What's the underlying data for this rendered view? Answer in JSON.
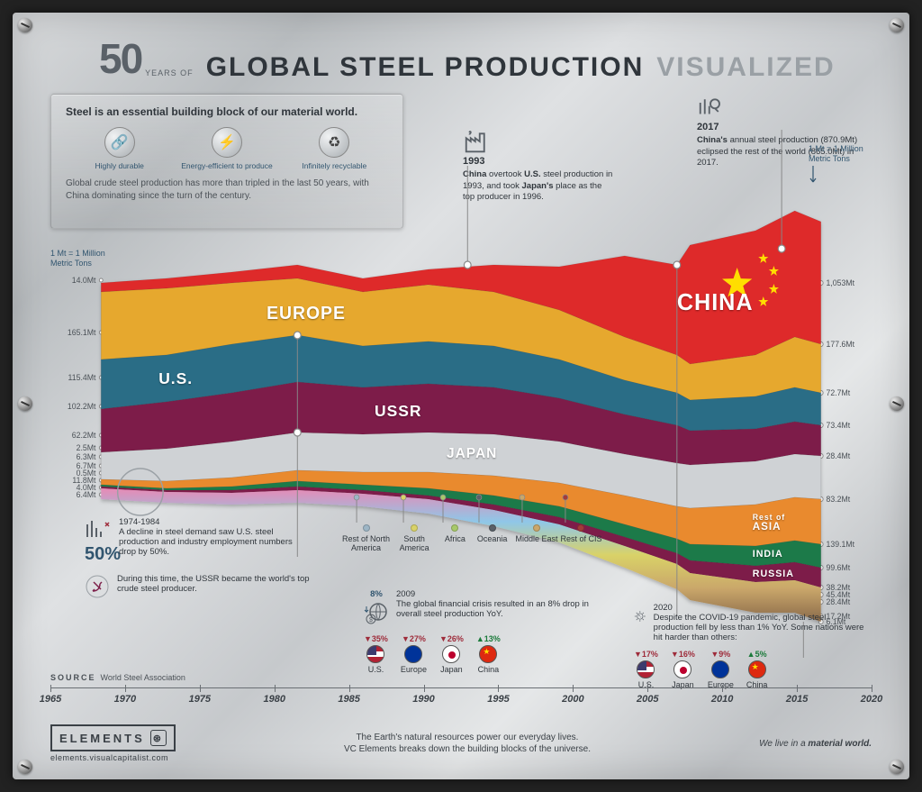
{
  "title": {
    "number": "50",
    "years_of": "YEARS OF",
    "main": "GLOBAL STEEL PRODUCTION",
    "suffix": "VISUALIZED"
  },
  "infobox": {
    "heading": "Steel is an essential building block of our material world.",
    "icons": [
      {
        "glyph": "🔗",
        "label": "Highly durable"
      },
      {
        "glyph": "⚡",
        "label": "Energy-efficient to produce"
      },
      {
        "glyph": "♻",
        "label": "Infinitely recyclable"
      }
    ],
    "subtext": "Global crude steel production has more than tripled in the last 50 years, with China dominating since the turn of the century."
  },
  "callout_1993": {
    "year": "1993",
    "text_parts": [
      "China",
      " overtook ",
      "U.S.",
      " steel production in 1993, and took ",
      "Japan's",
      " place as the top producer in 1996."
    ]
  },
  "callout_2017": {
    "year": "2017",
    "text_parts": [
      "China's",
      " annual steel production (870.9Mt) eclipsed the rest of the world (865.0Mt) in 2017."
    ]
  },
  "unit_left": "1 Mt = 1 Million Metric Tons",
  "unit_right": "1 Mt = 1 Million Metric Tons",
  "chart": {
    "type": "stacked-area",
    "x_domain": [
      1965,
      2020
    ],
    "years": [
      1965,
      1970,
      1975,
      1980,
      1985,
      1990,
      1995,
      2000,
      2005,
      2010,
      2015,
      2020
    ],
    "left_axis_values": [
      "14.0Mt",
      "165.1Mt",
      "115.4Mt",
      "102.2Mt",
      "62.2Mt",
      "2.5Mt",
      "6.3Mt",
      "6.7Mt",
      "0.5Mt",
      "11.8Mt",
      "4.0Mt",
      "6.4Mt"
    ],
    "right_axis_values": [
      "1,053Mt",
      "177.6Mt",
      "72.7Mt",
      "73.4Mt",
      "28.4Mt",
      "83.2Mt",
      "139.1Mt",
      "99.6Mt",
      "38.2Mt",
      "45.4Mt",
      "28.4Mt",
      "17.2Mt",
      "6.1Mt"
    ],
    "series": [
      {
        "name": "China",
        "label": "CHINA",
        "color": "#de2b2b",
        "label_color": "#ffffff",
        "label_pos": [
          0.8,
          0.18
        ]
      },
      {
        "name": "Europe",
        "label": "EUROPE",
        "color": "#e6a82e",
        "label_color": "#ffffff",
        "label_pos": [
          0.23,
          0.2
        ]
      },
      {
        "name": "U.S.",
        "label": "U.S.",
        "color": "#2b6d86",
        "label_color": "#ffffff",
        "label_pos": [
          0.08,
          0.4
        ]
      },
      {
        "name": "USSR",
        "label": "USSR",
        "color": "#7d1f49",
        "label_color": "#ffffff",
        "label_pos": [
          0.38,
          0.45
        ]
      },
      {
        "name": "Japan",
        "label": "JAPAN",
        "color": "#cfd2d5",
        "label_color": "#9aa0a5",
        "label_pos": [
          0.48,
          0.54
        ]
      },
      {
        "name": "Russia",
        "label": "RUSSIA",
        "color": "#7d1f49",
        "label_color": "#ffffff",
        "label_pos": [
          0.9,
          0.56
        ],
        "small": true
      },
      {
        "name": "Rest of Asia",
        "label": "Rest of ASIA",
        "color": "#e98a2e",
        "label_color": "#ffffff",
        "label_pos": [
          0.9,
          0.65
        ],
        "small": true
      },
      {
        "name": "India",
        "label": "INDIA",
        "color": "#1f7a4a",
        "label_color": "#ffffff",
        "label_pos": [
          0.9,
          0.72
        ],
        "small": true
      }
    ],
    "minor_legend": [
      {
        "label": "Rest of North America",
        "color": "#9db6c6"
      },
      {
        "label": "South America",
        "color": "#d9d268"
      },
      {
        "label": "Africa",
        "color": "#a8c96a"
      },
      {
        "label": "Oceania",
        "color": "#5a6168"
      },
      {
        "label": "Middle East",
        "color": "#caa76a"
      },
      {
        "label": "Rest of CIS",
        "color": "#a33a3a"
      }
    ],
    "background": "transparent",
    "china_flag_star_color": "#ffde00"
  },
  "ann_1974": {
    "year": "1974-1984",
    "text": "A decline in steel demand saw U.S. steel production and industry employment numbers drop by 50%.",
    "pct": "50%",
    "ussr_text": "During this time, the USSR became the world's top crude steel producer."
  },
  "ann_2009": {
    "year": "2009",
    "pct": "8%",
    "text": "The global financial crisis resulted in an 8% drop in overall steel production YoY.",
    "items": [
      {
        "pct": "▼35%",
        "dir": "down",
        "flag": "us",
        "label": "U.S."
      },
      {
        "pct": "▼27%",
        "dir": "down",
        "flag": "eu",
        "label": "Europe"
      },
      {
        "pct": "▼26%",
        "dir": "down",
        "flag": "jp",
        "label": "Japan"
      },
      {
        "pct": "▲13%",
        "dir": "up",
        "flag": "cn",
        "label": "China"
      }
    ]
  },
  "ann_2020": {
    "year": "2020",
    "text": "Despite the COVID-19 pandemic, global steel production fell by less than 1% YoY. Some nations were hit harder than others:",
    "items": [
      {
        "pct": "▼17%",
        "dir": "down",
        "flag": "us",
        "label": "U.S."
      },
      {
        "pct": "▼16%",
        "dir": "down",
        "flag": "jp",
        "label": "Japan"
      },
      {
        "pct": "▼9%",
        "dir": "down",
        "flag": "eu",
        "label": "Europe"
      },
      {
        "pct": "▲5%",
        "dir": "up",
        "flag": "cn",
        "label": "China"
      }
    ]
  },
  "source": {
    "label": "SOURCE",
    "value": "World Steel Association"
  },
  "timeline_years": [
    1965,
    1970,
    1975,
    1980,
    1985,
    1990,
    1995,
    2000,
    2005,
    2010,
    2015,
    2020
  ],
  "footer": {
    "brand": "ELEMENTS",
    "url": "elements.visualcapitalist.com",
    "mid1": "The Earth's natural resources power our everyday lives.",
    "mid2": "VC Elements breaks down the building blocks of the universe.",
    "right": "We live in a material world."
  },
  "colors": {
    "plate_text": "#2f353b",
    "accent_blue": "#31556f",
    "down": "#9e2b3a",
    "up": "#1a7a3a"
  }
}
